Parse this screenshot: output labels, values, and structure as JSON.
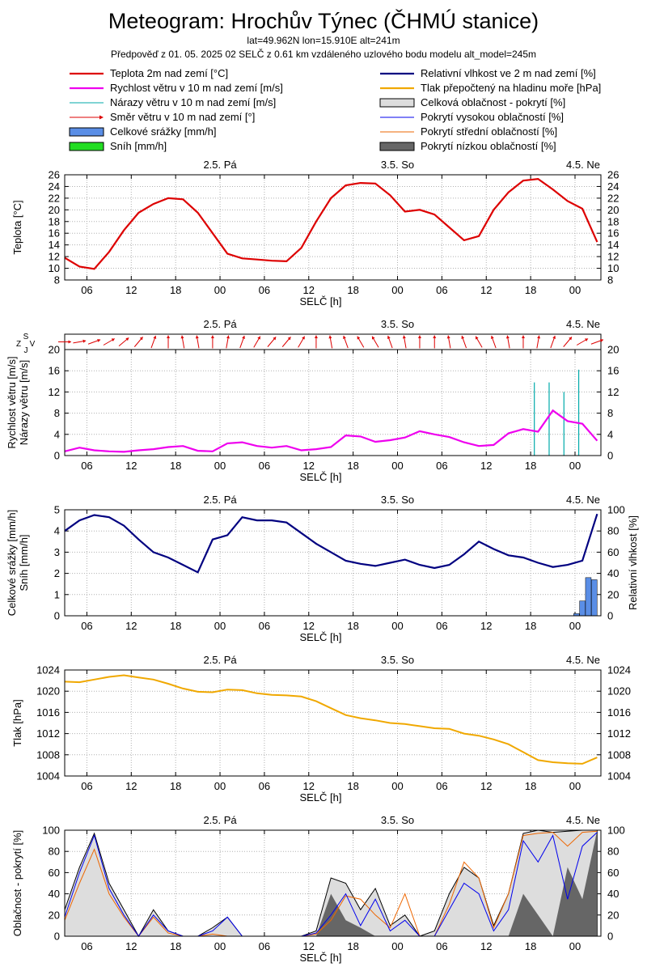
{
  "header": {
    "title": "Meteogram: Hrochův Týnec (ČHMÚ stanice)",
    "coords": "lat=49.962N lon=15.910E alt=241m",
    "forecast": "Předpověď z 01. 05. 2025 02 SELČ z 0.61 km vzdáleného uzlového bodu modelu alt_model=245m"
  },
  "legend": {
    "left": [
      {
        "label": "Teplota 2m nad zemí [°C]",
        "kind": "line",
        "color": "#dd0000"
      },
      {
        "label": "Rychlost větru v 10 m nad zemí [m/s]",
        "kind": "line",
        "color": "#ee00ee"
      },
      {
        "label": "Nárazy větru v 10 m nad zemí [m/s]",
        "kind": "thinline",
        "color": "#00aaaa"
      },
      {
        "label": "Směr větru v 10 m nad zemí [°]",
        "kind": "arrow",
        "color": "#dd0000"
      },
      {
        "label": "Celkové srážky [mm/h]",
        "kind": "box",
        "color": "#5a8ee6"
      },
      {
        "label": "Sníh [mm/h]",
        "kind": "box",
        "color": "#22dd22"
      }
    ],
    "right": [
      {
        "label": "Relativní vlhkost ve 2 m nad zemí [%]",
        "kind": "line",
        "color": "#000080"
      },
      {
        "label": "Tlak přepočtený na hladinu moře [hPa]",
        "kind": "line",
        "color": "#f0a800"
      },
      {
        "label": "Celková oblačnost - pokrytí [%]",
        "kind": "box",
        "color": "#dddddd"
      },
      {
        "label": "Pokrytí vysokou oblačností [%]",
        "kind": "thinline",
        "color": "#0000ee"
      },
      {
        "label": "Pokrytí střední oblačností [%]",
        "kind": "thinline",
        "color": "#ee6600"
      },
      {
        "label": "Pokrytí nízkou oblačností [%]",
        "kind": "box",
        "color": "#666666"
      }
    ]
  },
  "axis": {
    "xlabel": "SELČ [h]",
    "xticks": [
      "06",
      "12",
      "18",
      "00",
      "06",
      "12",
      "18",
      "00",
      "06",
      "12",
      "18",
      "00"
    ],
    "days": [
      "2.5. Pá",
      "3.5. So",
      "4.5. Ne"
    ],
    "dir_labels": {
      "n": "S",
      "w": "Z",
      "e": "V",
      "s": "J"
    }
  },
  "chart_data": [
    {
      "type": "line",
      "name": "temperature",
      "ylabel": "Teplota [°C]",
      "ylim": [
        8,
        26
      ],
      "yticks": [
        8,
        10,
        12,
        14,
        16,
        18,
        20,
        22,
        24,
        26
      ],
      "x_hours": [
        0,
        2,
        4,
        6,
        8,
        10,
        12,
        14,
        16,
        18,
        20,
        22,
        24,
        26,
        28,
        30,
        32,
        34,
        36,
        38,
        40,
        42,
        44,
        46,
        48,
        50,
        52,
        54,
        56,
        58,
        60,
        62,
        64,
        66,
        68,
        70,
        72
      ],
      "series": [
        {
          "color": "#dd0000",
          "values": [
            11.8,
            10.3,
            9.9,
            12.8,
            16.5,
            19.5,
            21.0,
            22.0,
            21.8,
            19.5,
            16.0,
            12.5,
            11.7,
            11.5,
            11.3,
            11.2,
            13.5,
            18.0,
            22.0,
            24.2,
            24.6,
            24.5,
            22.5,
            19.7,
            20.0,
            19.2,
            17.0,
            14.8,
            15.5,
            20.0,
            23.0,
            25.0,
            25.3,
            23.5,
            21.5,
            20.2,
            14.5
          ]
        }
      ]
    },
    {
      "type": "line",
      "name": "wind",
      "ylabel": [
        "Rychlost větru [m/s]",
        "Nárazy větru [m/s]"
      ],
      "ylim": [
        0,
        20
      ],
      "yticks": [
        0,
        4,
        8,
        12,
        16,
        20
      ],
      "x_hours": [
        0,
        2,
        4,
        6,
        8,
        10,
        12,
        14,
        16,
        18,
        20,
        22,
        24,
        26,
        28,
        30,
        32,
        34,
        36,
        38,
        40,
        42,
        44,
        46,
        48,
        50,
        52,
        54,
        56,
        58,
        60,
        62,
        64,
        66,
        68,
        70,
        72
      ],
      "series": [
        {
          "color": "#ee00ee",
          "name": "speed",
          "values": [
            0.8,
            1.5,
            1.0,
            0.8,
            0.7,
            1.0,
            1.2,
            1.6,
            1.8,
            0.9,
            0.8,
            2.3,
            2.5,
            1.8,
            1.5,
            1.8,
            1.0,
            1.2,
            1.6,
            3.8,
            3.6,
            2.6,
            2.9,
            3.4,
            4.6,
            4.0,
            3.5,
            2.5,
            1.8,
            2.0,
            4.2,
            5.0,
            4.5,
            8.5,
            6.5,
            6.0,
            2.8
          ]
        },
        {
          "color": "#00aaaa",
          "name": "gusts",
          "bars": [
            [
              63.5,
              13.8
            ],
            [
              65.5,
              13.8
            ],
            [
              67.5,
              12.0
            ],
            [
              69.5,
              16.2
            ]
          ]
        }
      ],
      "dir_degrees": [
        270,
        260,
        250,
        240,
        230,
        220,
        200,
        180,
        170,
        170,
        180,
        190,
        200,
        210,
        220,
        220,
        210,
        180,
        170,
        160,
        150,
        150,
        160,
        170,
        180,
        180,
        170,
        160,
        150,
        160,
        170,
        180,
        190,
        200,
        220,
        240,
        250
      ]
    },
    {
      "type": "line",
      "name": "humidity_precip",
      "ylabel": [
        "Celkové srážky [mm/h]",
        "Sníh [mm/h]"
      ],
      "y2label": "Relativní vlhkost [%]",
      "ylim": [
        0,
        5
      ],
      "yticks": [
        0,
        1,
        2,
        3,
        4,
        5
      ],
      "y2lim": [
        0,
        100
      ],
      "y2ticks": [
        0,
        20,
        40,
        60,
        80,
        100
      ],
      "x_hours": [
        0,
        2,
        4,
        6,
        8,
        10,
        12,
        14,
        16,
        18,
        20,
        22,
        24,
        26,
        28,
        30,
        32,
        34,
        36,
        38,
        40,
        42,
        44,
        46,
        48,
        50,
        52,
        54,
        56,
        58,
        60,
        62,
        64,
        66,
        68,
        70,
        72
      ],
      "series": [
        {
          "color": "#000080",
          "name": "humidity_pct",
          "values": [
            80,
            90,
            95,
            93,
            85,
            72,
            60,
            55,
            48,
            41,
            72,
            76,
            93,
            90,
            90,
            88,
            78,
            68,
            60,
            52,
            49,
            47,
            50,
            53,
            48,
            45,
            48,
            58,
            70,
            63,
            57,
            55,
            50,
            46,
            48,
            52,
            96
          ]
        },
        {
          "color": "#5a8ee6",
          "name": "precip_mm",
          "bars": [
            [
              69.2,
              0.1
            ],
            [
              70.0,
              0.7
            ],
            [
              70.8,
              1.8
            ],
            [
              71.6,
              1.7
            ]
          ]
        }
      ]
    },
    {
      "type": "line",
      "name": "pressure",
      "ylabel": "Tlak [hPa]",
      "ylim": [
        1004,
        1024
      ],
      "yticks": [
        1004,
        1008,
        1012,
        1016,
        1020,
        1024
      ],
      "x_hours": [
        0,
        2,
        4,
        6,
        8,
        10,
        12,
        14,
        16,
        18,
        20,
        22,
        24,
        26,
        28,
        30,
        32,
        34,
        36,
        38,
        40,
        42,
        44,
        46,
        48,
        50,
        52,
        54,
        56,
        58,
        60,
        62,
        64,
        66,
        68,
        70,
        72
      ],
      "series": [
        {
          "color": "#f0a800",
          "values": [
            1021.8,
            1021.7,
            1022.2,
            1022.7,
            1023.0,
            1022.6,
            1022.2,
            1021.4,
            1020.5,
            1019.9,
            1019.8,
            1020.3,
            1020.2,
            1019.6,
            1019.3,
            1019.2,
            1019.0,
            1018.1,
            1016.8,
            1015.5,
            1014.9,
            1014.5,
            1014.0,
            1013.8,
            1013.4,
            1013.0,
            1012.9,
            1012.0,
            1011.6,
            1010.9,
            1010.0,
            1008.5,
            1007.0,
            1006.6,
            1006.4,
            1006.3,
            1007.5
          ]
        }
      ]
    },
    {
      "type": "area",
      "name": "clouds",
      "ylabel": "Oblačnost - pokrytí [%]",
      "ylim": [
        0,
        100
      ],
      "yticks": [
        0,
        20,
        40,
        60,
        80,
        100
      ],
      "x_hours": [
        0,
        2,
        4,
        6,
        8,
        10,
        12,
        14,
        16,
        18,
        20,
        22,
        24,
        26,
        28,
        30,
        32,
        34,
        36,
        38,
        40,
        42,
        44,
        46,
        48,
        50,
        52,
        54,
        56,
        58,
        60,
        62,
        64,
        66,
        68,
        70,
        72
      ],
      "series": [
        {
          "color": "#dddddd",
          "name": "total",
          "values": [
            25,
            65,
            97,
            50,
            25,
            0,
            25,
            5,
            0,
            0,
            8,
            18,
            0,
            0,
            0,
            0,
            0,
            5,
            55,
            50,
            25,
            45,
            10,
            20,
            0,
            5,
            40,
            65,
            55,
            10,
            40,
            97,
            100,
            98,
            99,
            100,
            100
          ]
        },
        {
          "color": "#0000ee",
          "name": "high",
          "values": [
            18,
            60,
            95,
            45,
            20,
            0,
            20,
            5,
            0,
            0,
            5,
            18,
            0,
            0,
            0,
            0,
            0,
            3,
            20,
            40,
            10,
            35,
            5,
            15,
            0,
            0,
            25,
            50,
            40,
            5,
            25,
            90,
            70,
            95,
            35,
            85,
            98
          ]
        },
        {
          "color": "#ee6600",
          "name": "middle",
          "values": [
            15,
            50,
            82,
            40,
            18,
            0,
            18,
            3,
            0,
            0,
            2,
            0,
            0,
            0,
            0,
            0,
            0,
            2,
            15,
            38,
            35,
            20,
            8,
            40,
            0,
            0,
            30,
            70,
            55,
            8,
            40,
            95,
            97,
            98,
            85,
            98,
            99
          ]
        },
        {
          "color": "#666666",
          "name": "low",
          "values": [
            0,
            0,
            0,
            0,
            0,
            0,
            0,
            0,
            0,
            0,
            0,
            0,
            0,
            0,
            0,
            0,
            0,
            0,
            40,
            15,
            8,
            0,
            0,
            0,
            0,
            0,
            0,
            0,
            0,
            0,
            0,
            40,
            20,
            0,
            65,
            35,
            100
          ]
        }
      ]
    }
  ]
}
